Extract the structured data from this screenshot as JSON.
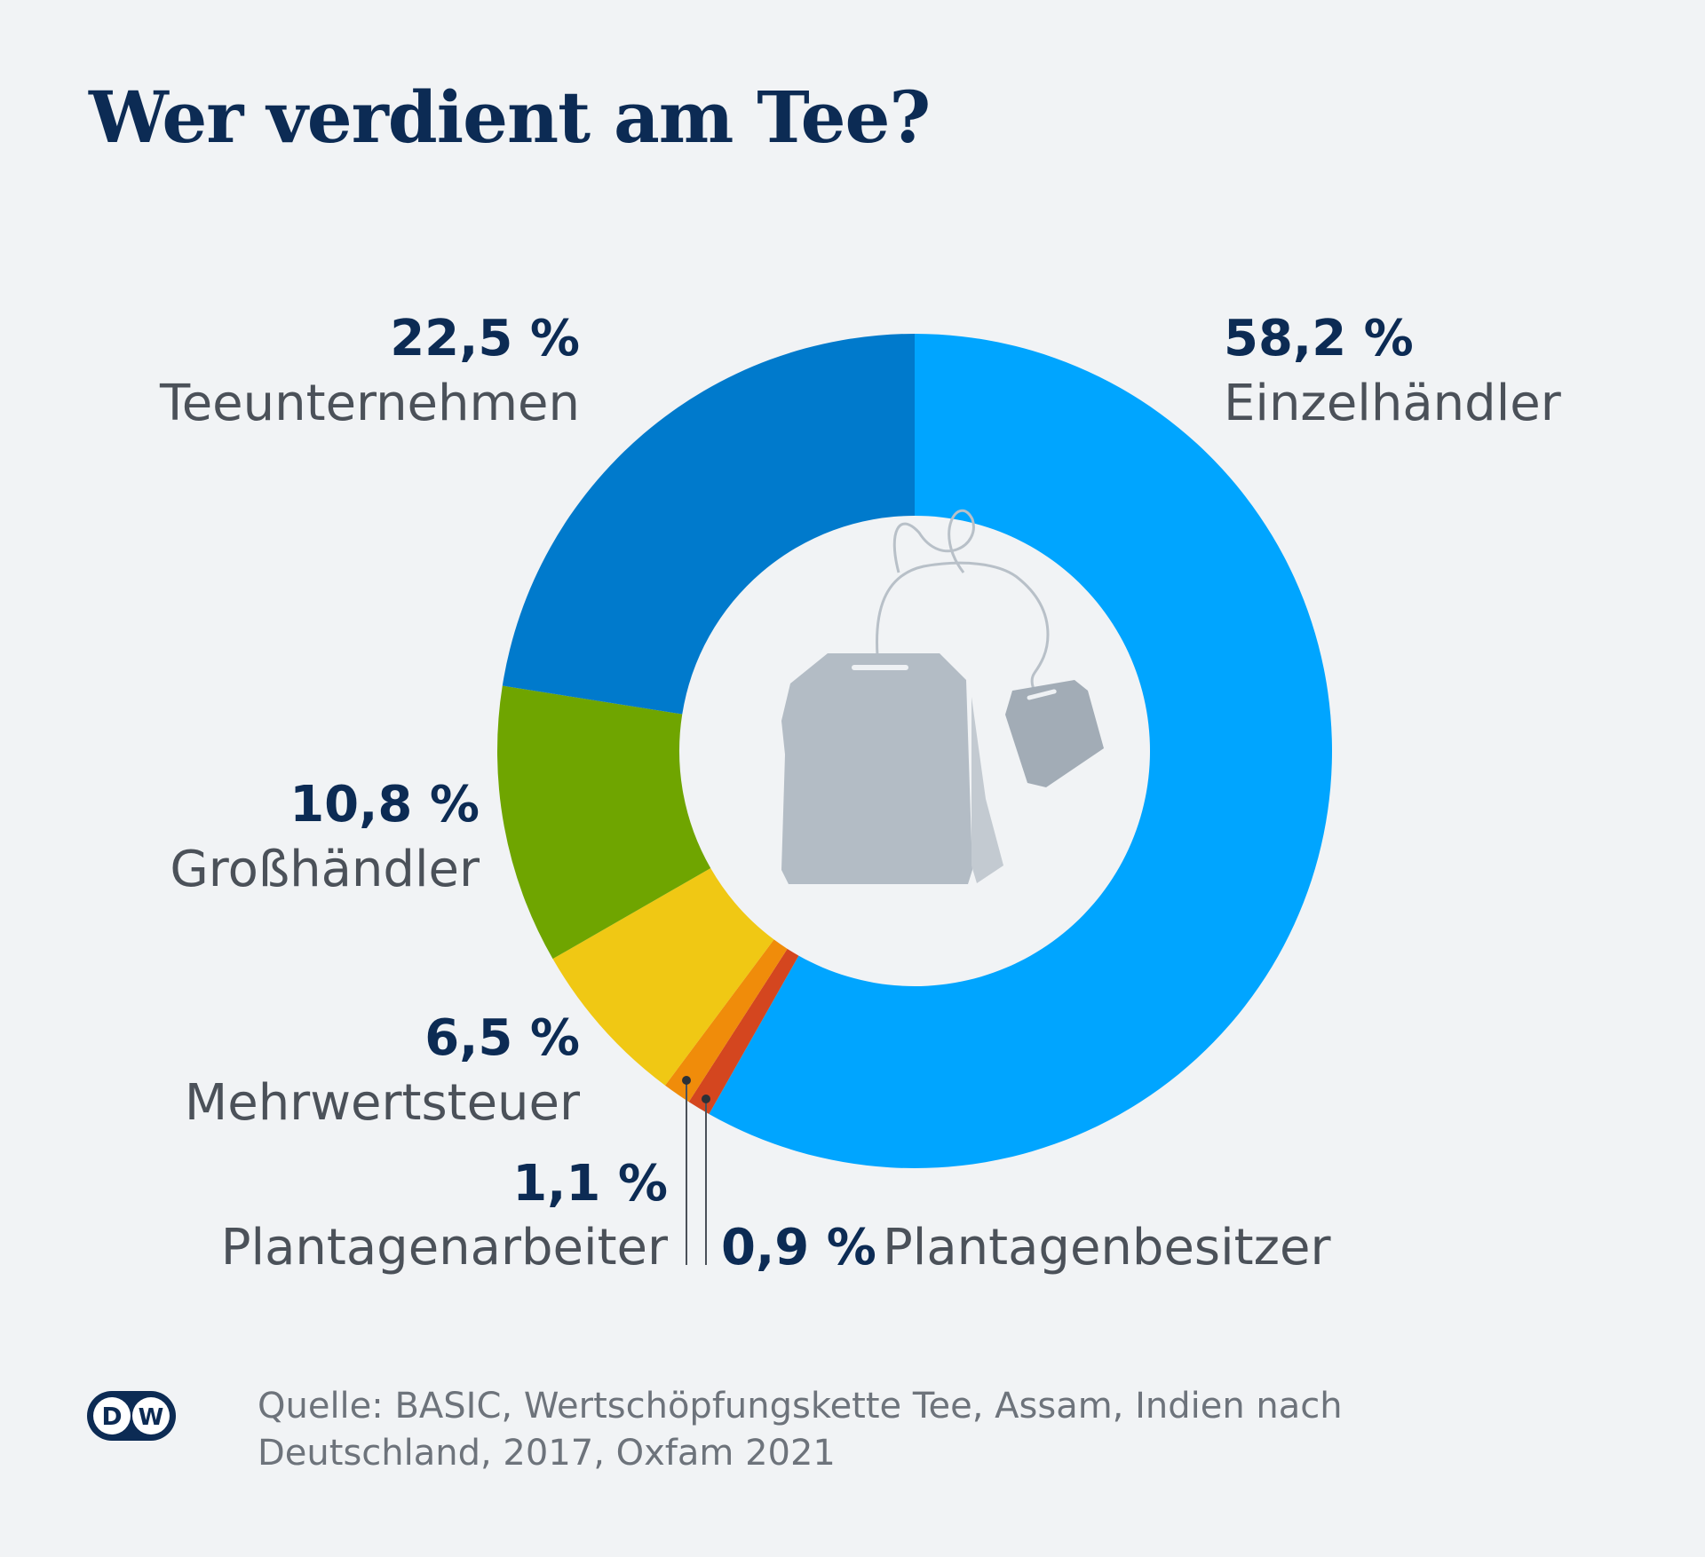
{
  "header": {
    "title": "Wer verdient am Tee?"
  },
  "chart_data": {
    "type": "pie",
    "title": "Wer verdient am Tee?",
    "variant": "donut",
    "unit": "%",
    "slices": [
      {
        "label": "Einzelhändler",
        "value": 58.2,
        "display": "58,2 %",
        "color": "#00a5ff"
      },
      {
        "label": "Plantagenbesitzer",
        "value": 0.9,
        "display": "0,9 %",
        "color": "#d4461f"
      },
      {
        "label": "Plantagenarbeiter",
        "value": 1.1,
        "display": "1,1 %",
        "color": "#f08c0a"
      },
      {
        "label": "Mehrwertsteuer",
        "value": 6.5,
        "display": "6,5 %",
        "color": "#f0c814"
      },
      {
        "label": "Großhändler",
        "value": 10.8,
        "display": "10,8 %",
        "color": "#6fa500"
      },
      {
        "label": "Teeunternehmen",
        "value": 22.5,
        "display": "22,5 %",
        "color": "#007acc"
      }
    ],
    "center_icon": "teabag-icon",
    "accent_color": "#0c2b54"
  },
  "footer": {
    "source": "Quelle: BASIC, Wertschöpfungskette Tee, Assam, Indien nach Deutschland, 2017, Oxfam 2021",
    "logo_text": "DW",
    "logo_icon": "dw-logo-icon"
  }
}
